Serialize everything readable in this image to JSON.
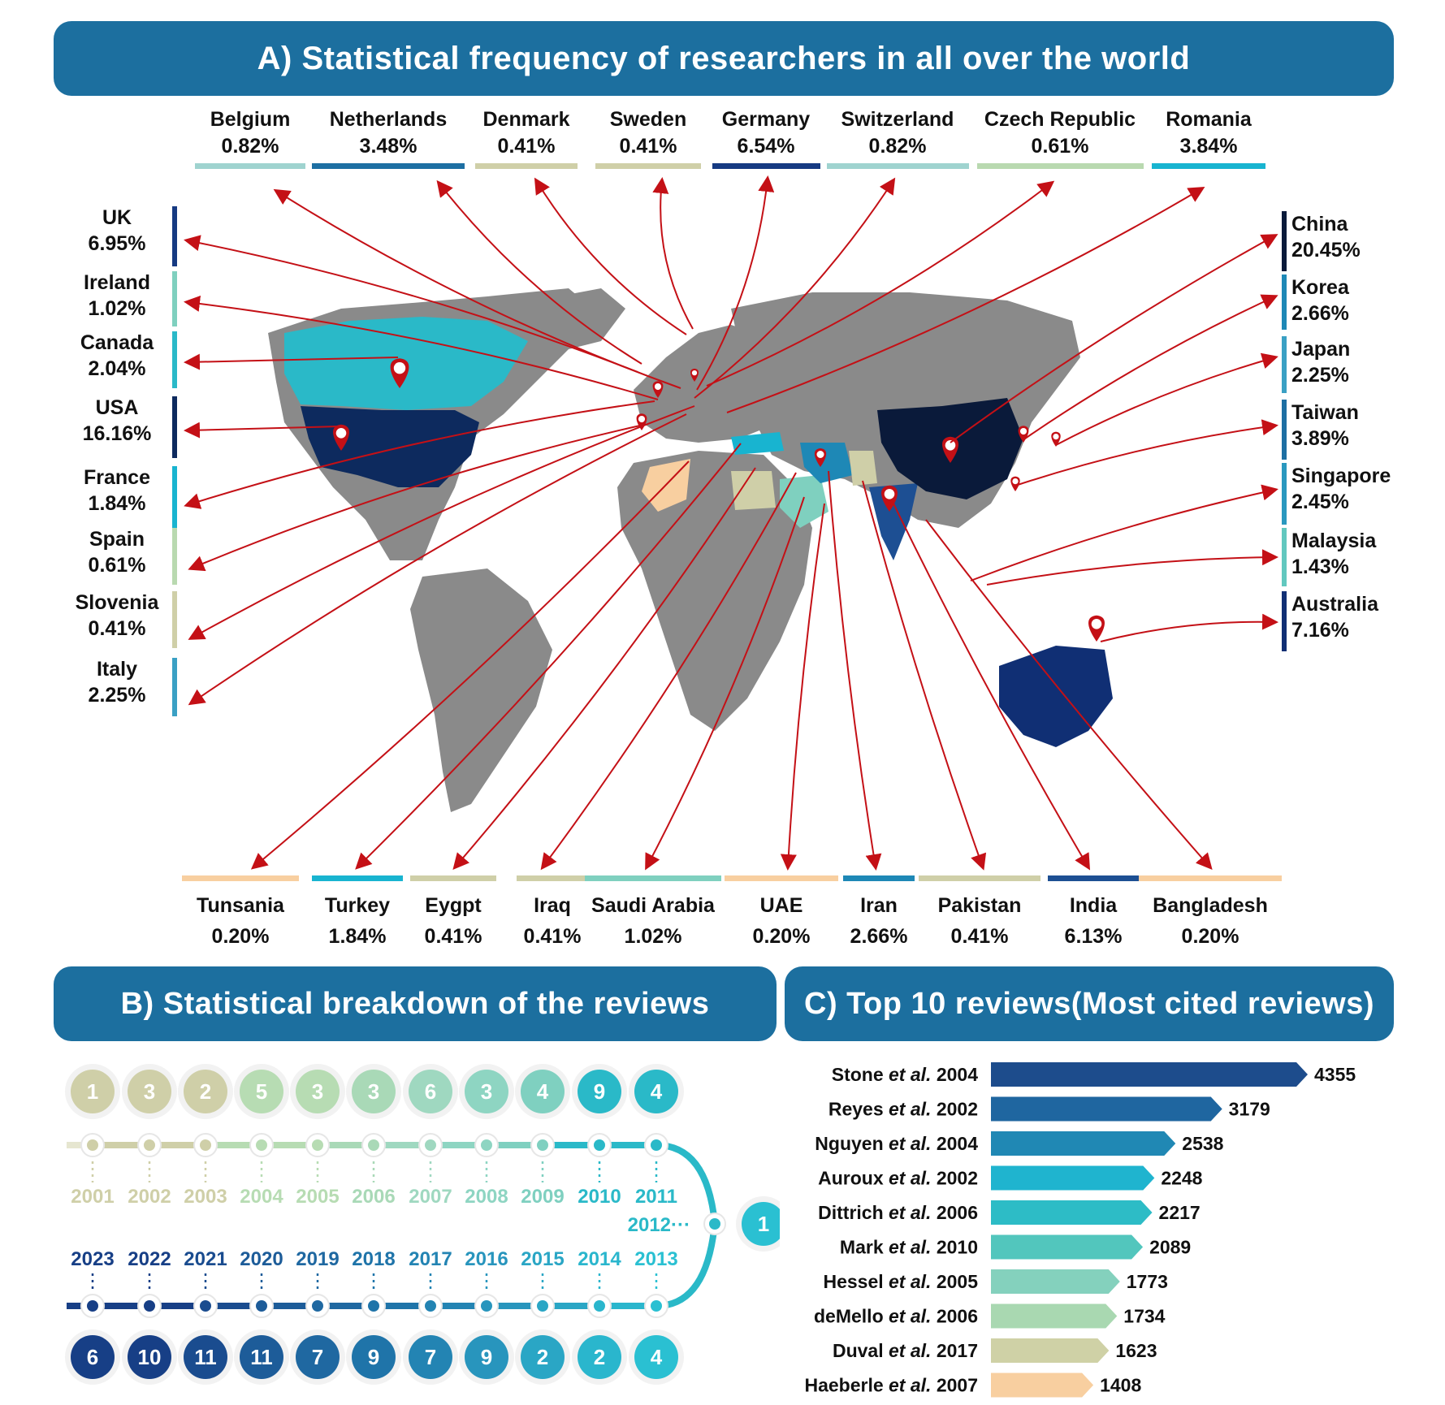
{
  "panelA": {
    "title": "A) Statistical frequency of researchers in all over the world",
    "top": [
      {
        "name": "Belgium",
        "pct": "0.82%",
        "color": "#9fd3cf"
      },
      {
        "name": "Netherlands",
        "pct": "3.48%",
        "color": "#1d6fa3"
      },
      {
        "name": "Denmark",
        "pct": "0.41%",
        "color": "#cfcfa8"
      },
      {
        "name": "Sweden",
        "pct": "0.41%",
        "color": "#cfcfa8"
      },
      {
        "name": "Germany",
        "pct": "6.54%",
        "color": "#163a82"
      },
      {
        "name": "Switzerland",
        "pct": "0.82%",
        "color": "#9fd3cf"
      },
      {
        "name": "Czech Republic",
        "pct": "0.61%",
        "color": "#b9d9b0"
      },
      {
        "name": "Romania",
        "pct": "3.84%",
        "color": "#18b4d0"
      }
    ],
    "left": [
      {
        "name": "UK",
        "pct": "6.95%",
        "color": "#163a82"
      },
      {
        "name": "Ireland",
        "pct": "1.02%",
        "color": "#7fd0bf"
      },
      {
        "name": "Canada",
        "pct": "2.04%",
        "color": "#2ab9c8"
      },
      {
        "name": "USA",
        "pct": "16.16%",
        "color": "#0d2a5e"
      },
      {
        "name": "France",
        "pct": "1.84%",
        "color": "#18b4d0"
      },
      {
        "name": "Spain",
        "pct": "0.61%",
        "color": "#b9d9b0"
      },
      {
        "name": "Slovenia",
        "pct": "0.41%",
        "color": "#cfcfa8"
      },
      {
        "name": "Italy",
        "pct": "2.25%",
        "color": "#3aa0c4"
      }
    ],
    "right": [
      {
        "name": "China",
        "pct": "20.45%",
        "color": "#0a1a3a"
      },
      {
        "name": "Korea",
        "pct": "2.66%",
        "color": "#1e88b6"
      },
      {
        "name": "Japan",
        "pct": "2.25%",
        "color": "#3aa0c4"
      },
      {
        "name": "Taiwan",
        "pct": "3.89%",
        "color": "#1d6fa3"
      },
      {
        "name": "Singapore",
        "pct": "2.45%",
        "color": "#2a98bf"
      },
      {
        "name": "Malaysia",
        "pct": "1.43%",
        "color": "#62c8bf"
      },
      {
        "name": "Australia",
        "pct": "7.16%",
        "color": "#102f74"
      }
    ],
    "bottom": [
      {
        "name": "Tunsania",
        "pct": "0.20%",
        "color": "#f8cfa0"
      },
      {
        "name": "Turkey",
        "pct": "1.84%",
        "color": "#18b4d0"
      },
      {
        "name": "Eygpt",
        "pct": "0.41%",
        "color": "#cfcfa8"
      },
      {
        "name": "Iraq",
        "pct": "0.41%",
        "color": "#cfcfa8"
      },
      {
        "name": "Saudi Arabia",
        "pct": "1.02%",
        "color": "#7fd0bf"
      },
      {
        "name": "UAE",
        "pct": "0.20%",
        "color": "#f8cfa0"
      },
      {
        "name": "Iran",
        "pct": "2.66%",
        "color": "#1e88b6"
      },
      {
        "name": "Pakistan",
        "pct": "0.41%",
        "color": "#cfcfa8"
      },
      {
        "name": "India",
        "pct": "6.13%",
        "color": "#1d4f93"
      },
      {
        "name": "Bangladesh",
        "pct": "0.20%",
        "color": "#f8cfa0"
      }
    ],
    "colors": {
      "land": "#8a8a8a",
      "arrow": "#c41016"
    }
  },
  "panelB": {
    "title": "B) Statistical breakdown of the reviews",
    "top_years": [
      "2001",
      "2002",
      "2003",
      "2004",
      "2005",
      "2006",
      "2007",
      "2008",
      "2009",
      "2010",
      "2011"
    ],
    "top_counts": [
      1,
      3,
      2,
      5,
      3,
      3,
      6,
      3,
      4,
      9,
      4
    ],
    "top_colors": [
      "#cfcfa8",
      "#cfcfa8",
      "#cfcfa8",
      "#b7dcb3",
      "#b7dcb3",
      "#a9d9b7",
      "#9fd8c0",
      "#8ed5c2",
      "#7fd0c0",
      "#2ab9c8",
      "#2ab9c8"
    ],
    "mid_year": "2012···",
    "mid_count": 1,
    "bottom_years": [
      "2023",
      "2022",
      "2021",
      "2020",
      "2019",
      "2018",
      "2017",
      "2016",
      "2015",
      "2014",
      "2013"
    ],
    "bottom_counts": [
      6,
      10,
      11,
      11,
      7,
      9,
      7,
      9,
      2,
      2,
      4
    ],
    "bottom_colors": [
      "#173f86",
      "#173f86",
      "#1a4c8f",
      "#1d5c99",
      "#1f68a1",
      "#1f74a9",
      "#2384b3",
      "#2895bd",
      "#2aa6c5",
      "#2ab6cd",
      "#2ac0d2"
    ]
  },
  "panelC": {
    "title": "C) Top 10 reviews(Most cited reviews)",
    "chart_data": {
      "type": "bar",
      "orientation": "horizontal",
      "categories": [
        "Stone et al. 2004",
        "Reyes et al. 2002",
        "Nguyen et al. 2004",
        "Auroux et al. 2002",
        "Dittrich et al. 2006",
        "Mark et al. 2010",
        "Hessel et al. 2005",
        "deMello et al. 2006",
        "Duval et al. 2017",
        "Haeberle et al. 2007"
      ],
      "authors": [
        "Stone",
        "Reyes",
        "Nguyen",
        "Auroux",
        "Dittrich",
        "Mark",
        "Hessel",
        "deMello",
        "Duval",
        "Haeberle"
      ],
      "years": [
        "2004",
        "2002",
        "2004",
        "2002",
        "2006",
        "2010",
        "2005",
        "2006",
        "2017",
        "2007"
      ],
      "values": [
        4355,
        3179,
        2538,
        2248,
        2217,
        2089,
        1773,
        1734,
        1623,
        1408
      ],
      "colors": [
        "#1d4c8c",
        "#1f66a0",
        "#2088b4",
        "#1fb4cf",
        "#2dbcc6",
        "#52c6bd",
        "#84d1bd",
        "#a9d8b1",
        "#cfd1a6",
        "#f8cfa0"
      ],
      "xlim": [
        0,
        4355
      ]
    }
  }
}
